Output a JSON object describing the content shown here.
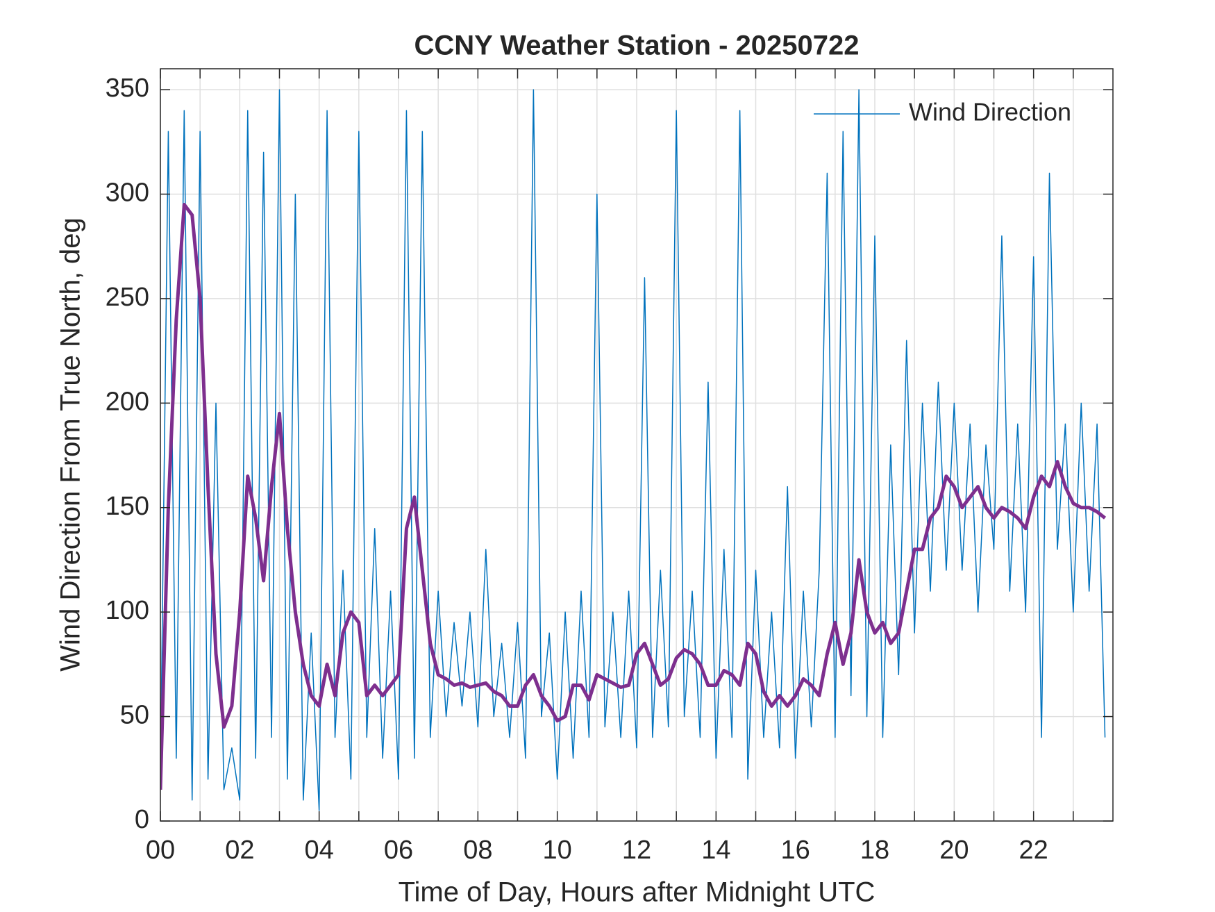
{
  "chart_data": {
    "type": "line",
    "title": "CCNY Weather Station - 20250722",
    "xlabel": "Time of Day, Hours after Midnight UTC",
    "ylabel": "Wind Direction From True North, deg",
    "xlim": [
      0,
      24
    ],
    "ylim": [
      0,
      360
    ],
    "xticks": [
      {
        "value": 0,
        "label": "00"
      },
      {
        "value": 2,
        "label": "02"
      },
      {
        "value": 4,
        "label": "04"
      },
      {
        "value": 6,
        "label": "06"
      },
      {
        "value": 8,
        "label": "08"
      },
      10,
      12,
      14,
      16,
      18,
      20,
      22
    ],
    "xminorticks": [
      1,
      3,
      5,
      7,
      9,
      11,
      13,
      15,
      17,
      19,
      21,
      23
    ],
    "yticks": [
      0,
      50,
      100,
      150,
      200,
      250,
      300,
      350
    ],
    "grid": true,
    "legend": "upper right",
    "x": [
      0,
      0.2,
      0.4,
      0.6,
      0.8,
      1,
      1.2,
      1.4,
      1.6,
      1.8,
      2,
      2.2,
      2.4,
      2.6,
      2.8,
      3,
      3.2,
      3.4,
      3.6,
      3.8,
      4,
      4.2,
      4.4,
      4.6,
      4.8,
      5,
      5.2,
      5.4,
      5.6,
      5.8,
      6,
      6.2,
      6.4,
      6.6,
      6.8,
      7,
      7.2,
      7.4,
      7.6,
      7.8,
      8,
      8.2,
      8.4,
      8.6,
      8.8,
      9,
      9.2,
      9.4,
      9.6,
      9.8,
      10,
      10.2,
      10.4,
      10.6,
      10.8,
      11,
      11.2,
      11.4,
      11.6,
      11.8,
      12,
      12.2,
      12.4,
      12.6,
      12.8,
      13,
      13.2,
      13.4,
      13.6,
      13.8,
      14,
      14.2,
      14.4,
      14.6,
      14.8,
      15,
      15.2,
      15.4,
      15.6,
      15.8,
      16,
      16.2,
      16.4,
      16.6,
      16.8,
      17,
      17.2,
      17.4,
      17.6,
      17.8,
      18,
      18.2,
      18.4,
      18.6,
      18.8,
      19,
      19.2,
      19.4,
      19.6,
      19.8,
      20,
      20.2,
      20.4,
      20.6,
      20.8,
      21,
      21.2,
      21.4,
      21.6,
      21.8,
      22,
      22.2,
      22.4,
      22.6,
      22.8,
      23,
      23.2,
      23.4,
      23.6,
      23.8
    ],
    "series": [
      {
        "name": "Wind Direction",
        "color": "#0072bd",
        "width": 1.5,
        "values": [
          20,
          330,
          30,
          340,
          10,
          330,
          20,
          200,
          15,
          35,
          10,
          340,
          30,
          320,
          40,
          350,
          20,
          300,
          10,
          90,
          5,
          340,
          40,
          120,
          20,
          330,
          40,
          140,
          30,
          110,
          20,
          340,
          30,
          330,
          40,
          110,
          50,
          95,
          55,
          100,
          45,
          130,
          50,
          85,
          40,
          95,
          30,
          350,
          50,
          90,
          20,
          100,
          30,
          110,
          40,
          300,
          45,
          100,
          40,
          110,
          35,
          260,
          40,
          120,
          45,
          340,
          50,
          110,
          40,
          210,
          30,
          130,
          40,
          340,
          20,
          120,
          40,
          100,
          35,
          160,
          30,
          110,
          45,
          120,
          310,
          40,
          330,
          60,
          350,
          50,
          280,
          40,
          180,
          70,
          230,
          90,
          200,
          110,
          210,
          120,
          200,
          120,
          190,
          100,
          180,
          130,
          280,
          110,
          190,
          100,
          270,
          40,
          310,
          130,
          190,
          100,
          200,
          110,
          190,
          40
        ]
      },
      {
        "color": "#7e2f8e",
        "width": 5,
        "values": [
          15,
          150,
          240,
          295,
          290,
          250,
          160,
          80,
          45,
          55,
          100,
          165,
          145,
          115,
          160,
          195,
          140,
          100,
          75,
          60,
          55,
          75,
          60,
          90,
          100,
          95,
          60,
          65,
          60,
          65,
          70,
          140,
          155,
          120,
          85,
          70,
          68,
          65,
          66,
          64,
          65,
          66,
          62,
          60,
          55,
          55,
          65,
          70,
          60,
          55,
          48,
          50,
          65,
          65,
          58,
          70,
          68,
          66,
          64,
          65,
          80,
          85,
          75,
          65,
          68,
          78,
          82,
          80,
          75,
          65,
          65,
          72,
          70,
          65,
          85,
          80,
          62,
          55,
          60,
          55,
          60,
          68,
          65,
          60,
          80,
          95,
          75,
          90,
          125,
          100,
          90,
          95,
          85,
          90,
          110,
          130,
          130,
          145,
          150,
          165,
          160,
          150,
          155,
          160,
          150,
          145,
          150,
          148,
          145,
          140,
          155,
          165,
          160,
          172,
          160,
          152,
          150,
          150,
          148,
          145
        ]
      }
    ]
  }
}
